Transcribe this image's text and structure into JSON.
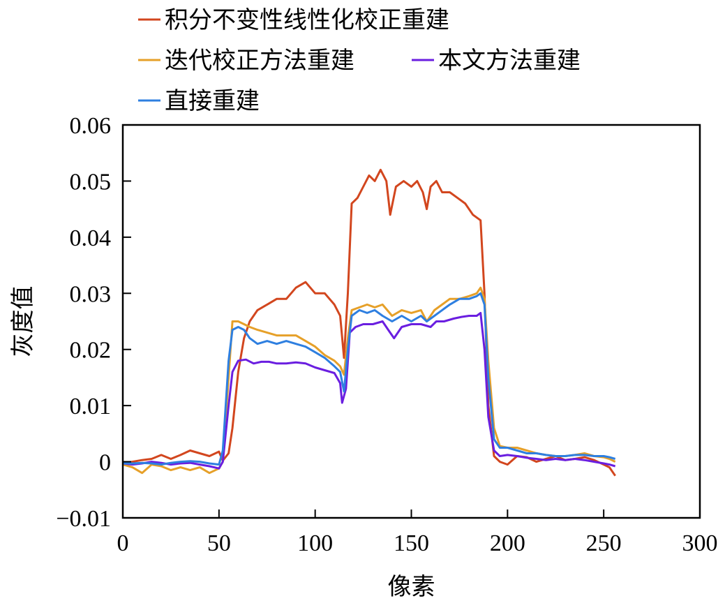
{
  "chart_data": {
    "type": "line",
    "xlabel": "像素",
    "ylabel": "灰度值",
    "xlim": [
      0,
      300
    ],
    "ylim": [
      -0.01,
      0.06
    ],
    "xticks": [
      0,
      50,
      100,
      150,
      200,
      250,
      300
    ],
    "xtick_labels": [
      "0",
      "50",
      "100",
      "150",
      "200",
      "250",
      "300"
    ],
    "yticks": [
      -0.01,
      0,
      0.01,
      0.02,
      0.03,
      0.04,
      0.05,
      0.06
    ],
    "ytick_labels": [
      "−0.01",
      "0",
      "0.01",
      "0.02",
      "0.03",
      "0.04",
      "0.05",
      "0.06"
    ],
    "grid": false,
    "legend_position": "top-left, above plot",
    "series": [
      {
        "name": "积分不变性线性化校正重建",
        "color": "#d2461e",
        "points": [
          [
            0,
            -0.0003
          ],
          [
            5,
            0
          ],
          [
            10,
            0.0003
          ],
          [
            15,
            0.0005
          ],
          [
            20,
            0.0012
          ],
          [
            25,
            0.0005
          ],
          [
            30,
            0.0012
          ],
          [
            35,
            0.002
          ],
          [
            40,
            0.0015
          ],
          [
            45,
            0.001
          ],
          [
            50,
            0.0018
          ],
          [
            52,
            0.0002
          ],
          [
            55,
            0.0015
          ],
          [
            57,
            0.006
          ],
          [
            60,
            0.016
          ],
          [
            63,
            0.022
          ],
          [
            66,
            0.025
          ],
          [
            70,
            0.027
          ],
          [
            75,
            0.028
          ],
          [
            80,
            0.029
          ],
          [
            85,
            0.029
          ],
          [
            90,
            0.031
          ],
          [
            95,
            0.032
          ],
          [
            100,
            0.03
          ],
          [
            105,
            0.03
          ],
          [
            110,
            0.028
          ],
          [
            113,
            0.026
          ],
          [
            115,
            0.0185
          ],
          [
            117,
            0.03
          ],
          [
            119,
            0.046
          ],
          [
            122,
            0.047
          ],
          [
            125,
            0.049
          ],
          [
            128,
            0.051
          ],
          [
            131,
            0.05
          ],
          [
            134,
            0.052
          ],
          [
            137,
            0.05
          ],
          [
            139,
            0.044
          ],
          [
            142,
            0.049
          ],
          [
            146,
            0.05
          ],
          [
            150,
            0.049
          ],
          [
            153,
            0.05
          ],
          [
            156,
            0.048
          ],
          [
            158,
            0.045
          ],
          [
            160,
            0.049
          ],
          [
            163,
            0.05
          ],
          [
            166,
            0.048
          ],
          [
            170,
            0.048
          ],
          [
            174,
            0.047
          ],
          [
            178,
            0.046
          ],
          [
            182,
            0.044
          ],
          [
            186,
            0.043
          ],
          [
            188,
            0.03
          ],
          [
            190,
            0.01
          ],
          [
            193,
            0.001
          ],
          [
            196,
            0
          ],
          [
            200,
            -0.0005
          ],
          [
            205,
            0.001
          ],
          [
            210,
            0.0008
          ],
          [
            215,
            0
          ],
          [
            220,
            0.0005
          ],
          [
            225,
            0.001
          ],
          [
            230,
            0.0003
          ],
          [
            235,
            0.0005
          ],
          [
            240,
            0.0008
          ],
          [
            245,
            0.0003
          ],
          [
            250,
            -0.0005
          ],
          [
            253,
            -0.001
          ],
          [
            256,
            -0.0025
          ]
        ]
      },
      {
        "name": "迭代校正方法重建",
        "color": "#e6a029",
        "points": [
          [
            0,
            -0.0005
          ],
          [
            5,
            -0.001
          ],
          [
            10,
            -0.002
          ],
          [
            15,
            -0.0005
          ],
          [
            20,
            -0.0008
          ],
          [
            25,
            -0.0015
          ],
          [
            30,
            -0.001
          ],
          [
            35,
            -0.0015
          ],
          [
            40,
            -0.001
          ],
          [
            45,
            -0.002
          ],
          [
            50,
            -0.0012
          ],
          [
            52,
            0
          ],
          [
            55,
            0.015
          ],
          [
            57,
            0.025
          ],
          [
            60,
            0.025
          ],
          [
            63,
            0.0245
          ],
          [
            66,
            0.024
          ],
          [
            70,
            0.0235
          ],
          [
            75,
            0.023
          ],
          [
            80,
            0.0225
          ],
          [
            85,
            0.0225
          ],
          [
            90,
            0.0225
          ],
          [
            95,
            0.0215
          ],
          [
            100,
            0.0205
          ],
          [
            105,
            0.019
          ],
          [
            110,
            0.018
          ],
          [
            113,
            0.017
          ],
          [
            115,
            0.0155
          ],
          [
            117,
            0.022
          ],
          [
            119,
            0.027
          ],
          [
            123,
            0.0275
          ],
          [
            127,
            0.028
          ],
          [
            131,
            0.0275
          ],
          [
            135,
            0.028
          ],
          [
            140,
            0.026
          ],
          [
            145,
            0.027
          ],
          [
            150,
            0.0265
          ],
          [
            155,
            0.027
          ],
          [
            158,
            0.025
          ],
          [
            162,
            0.027
          ],
          [
            166,
            0.028
          ],
          [
            170,
            0.029
          ],
          [
            175,
            0.029
          ],
          [
            180,
            0.0295
          ],
          [
            184,
            0.03
          ],
          [
            186,
            0.031
          ],
          [
            188,
            0.029
          ],
          [
            190,
            0.018
          ],
          [
            193,
            0.006
          ],
          [
            196,
            0.0028
          ],
          [
            200,
            0.0025
          ],
          [
            205,
            0.0025
          ],
          [
            210,
            0.002
          ],
          [
            215,
            0.0015
          ],
          [
            220,
            0.0012
          ],
          [
            225,
            0.001
          ],
          [
            230,
            0.001
          ],
          [
            235,
            0.0012
          ],
          [
            240,
            0.0015
          ],
          [
            245,
            0.001
          ],
          [
            250,
            0.0008
          ],
          [
            253,
            0.0005
          ],
          [
            256,
            0
          ]
        ]
      },
      {
        "name": "本文方法重建",
        "color": "#6a1ee0",
        "points": [
          [
            0,
            -0.0003
          ],
          [
            5,
            -0.0005
          ],
          [
            10,
            -0.0003
          ],
          [
            15,
            0
          ],
          [
            20,
            -0.0002
          ],
          [
            25,
            -0.0005
          ],
          [
            30,
            -0.0003
          ],
          [
            35,
            -0.0002
          ],
          [
            40,
            -0.0005
          ],
          [
            45,
            -0.0008
          ],
          [
            50,
            -0.0012
          ],
          [
            52,
            0
          ],
          [
            55,
            0.01
          ],
          [
            57,
            0.016
          ],
          [
            60,
            0.018
          ],
          [
            64,
            0.0182
          ],
          [
            68,
            0.0175
          ],
          [
            72,
            0.0178
          ],
          [
            76,
            0.0178
          ],
          [
            80,
            0.0175
          ],
          [
            85,
            0.0175
          ],
          [
            90,
            0.0177
          ],
          [
            95,
            0.0175
          ],
          [
            100,
            0.0168
          ],
          [
            105,
            0.0163
          ],
          [
            110,
            0.0158
          ],
          [
            113,
            0.014
          ],
          [
            114,
            0.0105
          ],
          [
            116,
            0.013
          ],
          [
            118,
            0.023
          ],
          [
            121,
            0.024
          ],
          [
            125,
            0.0245
          ],
          [
            130,
            0.0245
          ],
          [
            135,
            0.025
          ],
          [
            138,
            0.0235
          ],
          [
            141,
            0.022
          ],
          [
            145,
            0.024
          ],
          [
            150,
            0.0245
          ],
          [
            155,
            0.0245
          ],
          [
            160,
            0.024
          ],
          [
            163,
            0.025
          ],
          [
            167,
            0.025
          ],
          [
            172,
            0.0255
          ],
          [
            176,
            0.0258
          ],
          [
            180,
            0.026
          ],
          [
            184,
            0.026
          ],
          [
            186,
            0.0265
          ],
          [
            188,
            0.02
          ],
          [
            190,
            0.008
          ],
          [
            193,
            0.002
          ],
          [
            196,
            0.001
          ],
          [
            200,
            0.0012
          ],
          [
            205,
            0.001
          ],
          [
            210,
            0.0007
          ],
          [
            215,
            0.0005
          ],
          [
            220,
            0.0003
          ],
          [
            225,
            0.0005
          ],
          [
            230,
            0.0003
          ],
          [
            235,
            0.0005
          ],
          [
            240,
            0.0003
          ],
          [
            245,
            0
          ],
          [
            250,
            -0.0003
          ],
          [
            253,
            -0.0005
          ],
          [
            256,
            -0.0008
          ]
        ]
      },
      {
        "name": "直接重建",
        "color": "#2e7fe0",
        "points": [
          [
            0,
            -0.0003
          ],
          [
            5,
            -0.0003
          ],
          [
            10,
            -0.0002
          ],
          [
            15,
            -0.0003
          ],
          [
            20,
            -0.0005
          ],
          [
            25,
            -0.0002
          ],
          [
            30,
            0
          ],
          [
            35,
            0.0001
          ],
          [
            40,
            0
          ],
          [
            45,
            -0.0003
          ],
          [
            50,
            -0.0005
          ],
          [
            52,
            0.002
          ],
          [
            55,
            0.018
          ],
          [
            57,
            0.0235
          ],
          [
            60,
            0.024
          ],
          [
            63,
            0.0235
          ],
          [
            66,
            0.022
          ],
          [
            70,
            0.021
          ],
          [
            75,
            0.0215
          ],
          [
            80,
            0.021
          ],
          [
            85,
            0.0215
          ],
          [
            90,
            0.021
          ],
          [
            95,
            0.0205
          ],
          [
            100,
            0.0195
          ],
          [
            105,
            0.0185
          ],
          [
            110,
            0.017
          ],
          [
            113,
            0.016
          ],
          [
            115,
            0.0125
          ],
          [
            117,
            0.02
          ],
          [
            119,
            0.026
          ],
          [
            123,
            0.027
          ],
          [
            127,
            0.0265
          ],
          [
            131,
            0.027
          ],
          [
            135,
            0.026
          ],
          [
            140,
            0.025
          ],
          [
            145,
            0.026
          ],
          [
            150,
            0.025
          ],
          [
            155,
            0.026
          ],
          [
            158,
            0.025
          ],
          [
            162,
            0.026
          ],
          [
            166,
            0.027
          ],
          [
            170,
            0.028
          ],
          [
            175,
            0.029
          ],
          [
            180,
            0.029
          ],
          [
            184,
            0.0295
          ],
          [
            186,
            0.03
          ],
          [
            188,
            0.028
          ],
          [
            190,
            0.015
          ],
          [
            193,
            0.004
          ],
          [
            196,
            0.0025
          ],
          [
            200,
            0.0025
          ],
          [
            205,
            0.002
          ],
          [
            210,
            0.0015
          ],
          [
            215,
            0.0015
          ],
          [
            220,
            0.0012
          ],
          [
            225,
            0.001
          ],
          [
            230,
            0.001
          ],
          [
            235,
            0.0012
          ],
          [
            240,
            0.0012
          ],
          [
            245,
            0.001
          ],
          [
            250,
            0.001
          ],
          [
            253,
            0.0008
          ],
          [
            256,
            0.0005
          ]
        ]
      }
    ]
  }
}
